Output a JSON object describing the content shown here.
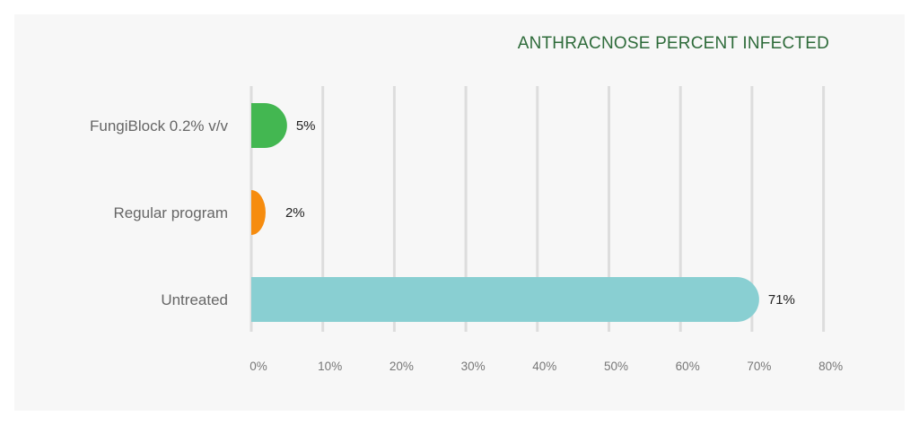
{
  "chart_data": {
    "type": "bar",
    "orientation": "horizontal",
    "title": "ANTHRACNOSE PERCENT INFECTED",
    "categories": [
      "FungiBlock 0.2% v/v",
      "Regular program",
      "Untreated"
    ],
    "values": [
      5,
      2,
      71
    ],
    "value_labels": [
      "5%",
      "2%",
      "71%"
    ],
    "bar_colors": [
      "#43b751",
      "#f68c0f",
      "#89cfd2"
    ],
    "xlim": [
      0,
      80
    ],
    "x_ticks": [
      0,
      10,
      20,
      30,
      40,
      50,
      60,
      70,
      80
    ],
    "x_tick_labels": [
      "0%",
      "10%",
      "20%",
      "30%",
      "40%",
      "50%",
      "60%",
      "70%",
      "80%"
    ],
    "grid": true,
    "xlabel": "",
    "ylabel": ""
  },
  "colors": {
    "title": "#2e6b3a",
    "grid": "#dddddd",
    "panel_background": "#f7f7f7"
  }
}
